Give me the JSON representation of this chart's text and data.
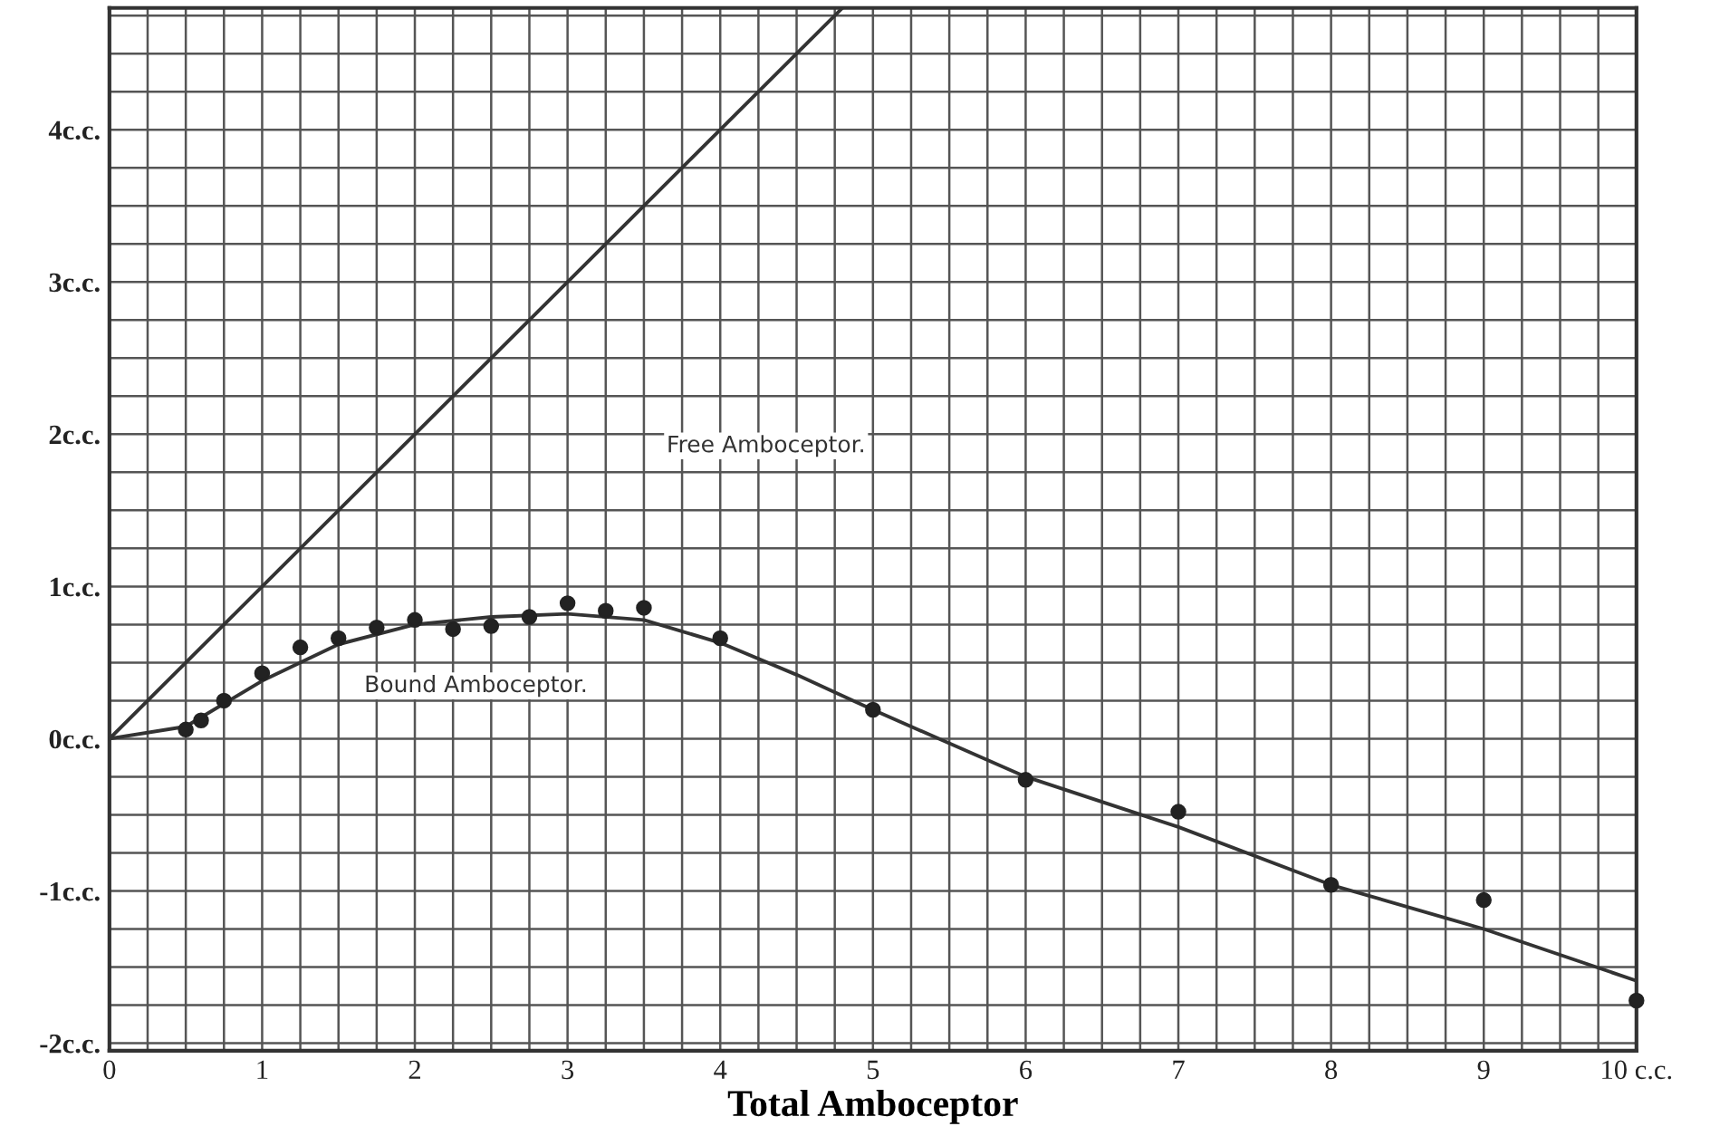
{
  "chart_data": {
    "type": "line",
    "xlabel": "Total Amboceptor",
    "xlim": [
      0,
      10
    ],
    "ylim": [
      -2.05,
      4.8
    ],
    "xticks": [
      0,
      {
        "value": 0.25,
        "label": null
      },
      {
        "value": 0.5,
        "label": null
      },
      {
        "value": 0.75,
        "label": null
      },
      1,
      {
        "value": 1.25,
        "label": null
      },
      {
        "value": 1.5,
        "label": null
      },
      {
        "value": 1.75,
        "label": null
      },
      2,
      {
        "value": 2.25,
        "label": null
      },
      {
        "value": 2.5,
        "label": null
      },
      {
        "value": 2.75,
        "label": null
      },
      3,
      {
        "value": 3.25,
        "label": null
      },
      {
        "value": 3.5,
        "label": null
      },
      {
        "value": 3.75,
        "label": null
      },
      4,
      {
        "value": 4.25,
        "label": null
      },
      {
        "value": 4.5,
        "label": null
      },
      {
        "value": 4.75,
        "label": null
      },
      5,
      {
        "value": 5.25,
        "label": null
      },
      {
        "value": 5.5,
        "label": null
      },
      {
        "value": 5.75,
        "label": null
      },
      6,
      {
        "value": 6.25,
        "label": null
      },
      {
        "value": 6.5,
        "label": null
      },
      {
        "value": 6.75,
        "label": null
      },
      7,
      {
        "value": 7.25,
        "label": null
      },
      {
        "value": 7.5,
        "label": null
      },
      {
        "value": 7.75,
        "label": null
      },
      8,
      {
        "value": 8.25,
        "label": null
      },
      {
        "value": 8.5,
        "label": null
      },
      {
        "value": 8.75,
        "label": null
      },
      9,
      {
        "value": 9.25,
        "label": null
      },
      {
        "value": 9.5,
        "label": null
      },
      {
        "value": 9.75,
        "label": null
      },
      {
        "value": 10,
        "label": "10 c.c."
      }
    ],
    "yticks": [
      {
        "value": -2,
        "label": "-2c.c."
      },
      {
        "value": -1.75,
        "label": null
      },
      {
        "value": -1.5,
        "label": null
      },
      {
        "value": -1.25,
        "label": null
      },
      {
        "value": -1,
        "label": "-1c.c."
      },
      {
        "value": -0.75,
        "label": null
      },
      {
        "value": -0.5,
        "label": null
      },
      {
        "value": -0.25,
        "label": null
      },
      {
        "value": 0,
        "label": "0c.c."
      },
      {
        "value": 0.25,
        "label": null
      },
      {
        "value": 0.5,
        "label": null
      },
      {
        "value": 0.75,
        "label": null
      },
      {
        "value": 1,
        "label": "1c.c."
      },
      {
        "value": 1.25,
        "label": null
      },
      {
        "value": 1.5,
        "label": null
      },
      {
        "value": 1.75,
        "label": null
      },
      {
        "value": 2,
        "label": "2c.c."
      },
      {
        "value": 2.25,
        "label": null
      },
      {
        "value": 2.5,
        "label": null
      },
      {
        "value": 2.75,
        "label": null
      },
      {
        "value": 3,
        "label": "3c.c."
      },
      {
        "value": 3.25,
        "label": null
      },
      {
        "value": 3.5,
        "label": null
      },
      {
        "value": 3.75,
        "label": null
      },
      {
        "value": 4,
        "label": "4c.c."
      },
      {
        "value": 4.25,
        "label": null
      },
      {
        "value": 4.5,
        "label": null
      },
      {
        "value": 4.75,
        "label": null
      }
    ],
    "grid": true,
    "series": [
      {
        "color": "#333333",
        "x": [
          0,
          4.8
        ],
        "values": [
          0,
          4.8
        ]
      },
      {
        "name": "Bound Amboceptor.",
        "color": "#333333",
        "x": [
          0,
          0.5,
          1,
          1.5,
          2,
          2.5,
          3,
          3.5,
          4,
          4.5,
          5,
          5.5,
          6,
          7,
          8,
          9,
          10
        ],
        "values": [
          0,
          0.08,
          0.38,
          0.62,
          0.75,
          0.8,
          0.82,
          0.78,
          0.63,
          0.42,
          0.19,
          -0.03,
          -0.25,
          -0.58,
          -0.96,
          -1.25,
          -1.59
        ]
      },
      {
        "type": "scatter",
        "color": "#222222",
        "marker": "circle",
        "x": [
          0.5,
          0.6,
          0.75,
          1,
          1.25,
          1.5,
          1.75,
          2,
          2.25,
          2.5,
          2.75,
          3,
          3.25,
          3.5,
          4,
          5,
          6,
          7,
          8,
          9,
          10
        ],
        "values": [
          0.06,
          0.12,
          0.25,
          0.43,
          0.6,
          0.66,
          0.73,
          0.78,
          0.72,
          0.74,
          0.8,
          0.89,
          0.84,
          0.86,
          0.66,
          0.19,
          -0.27,
          -0.48,
          -0.96,
          -1.06,
          -1.72
        ]
      }
    ],
    "annotations": [
      "Free Amboceptor."
    ]
  }
}
